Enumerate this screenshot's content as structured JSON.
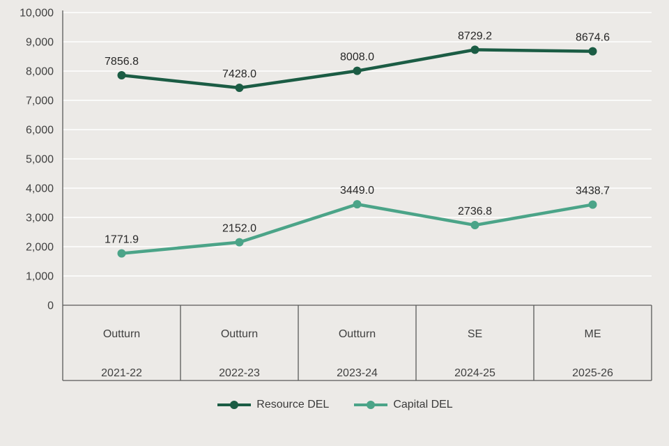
{
  "chart_data": {
    "type": "line",
    "categories": [
      {
        "top": "Outturn",
        "bottom": "2021-22"
      },
      {
        "top": "Outturn",
        "bottom": "2022-23"
      },
      {
        "top": "Outturn",
        "bottom": "2023-24"
      },
      {
        "top": "SE",
        "bottom": "2024-25"
      },
      {
        "top": "ME",
        "bottom": "2025-26"
      }
    ],
    "series": [
      {
        "name": "Resource DEL",
        "color": "#1b5c44",
        "values": [
          7856.8,
          7428.0,
          8008.0,
          8729.2,
          8674.6
        ]
      },
      {
        "name": "Capital DEL",
        "color": "#4ba488",
        "values": [
          1771.9,
          2152.0,
          3449.0,
          2736.8,
          3438.7
        ]
      }
    ],
    "ylim": [
      0,
      10000
    ],
    "ytick_step": 1000,
    "ytick_labels": [
      "0",
      "1,000",
      "2,000",
      "3,000",
      "4,000",
      "5,000",
      "6,000",
      "7,000",
      "8,000",
      "9,000",
      "10,000"
    ],
    "grid": true,
    "legend_position": "bottom",
    "title": "",
    "xlabel": "",
    "ylabel": ""
  },
  "colors": {
    "background": "#eceae7",
    "gridline": "#ffffff",
    "axis": "#595959",
    "tick_text": "#404040",
    "data_label_text": "#262626"
  },
  "legend": {
    "items": [
      {
        "label": "Resource DEL"
      },
      {
        "label": "Capital DEL"
      }
    ]
  }
}
